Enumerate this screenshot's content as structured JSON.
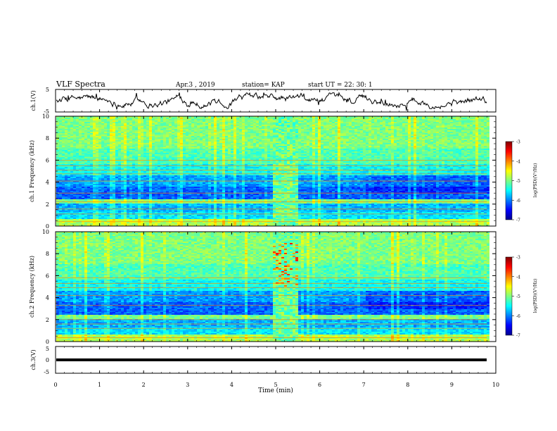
{
  "header": {
    "title": "VLF Spectra",
    "date": "Apr.3 , 2019",
    "station": "station= KAP",
    "start": "start UT = 22: 30: 1"
  },
  "chart_data": [
    {
      "type": "line",
      "name": "ch1-voltage",
      "ylabel": "ch.1(V)",
      "ylim": [
        -5,
        5
      ],
      "yticks": [
        "5",
        "-5"
      ],
      "xlim": [
        0,
        9.8
      ],
      "note": "noisy trace around 0 V"
    },
    {
      "type": "heatmap",
      "name": "ch1-spectrogram",
      "ylabel": "ch.1 Frequency (kHz)",
      "ylim": [
        0,
        10
      ],
      "yticks": [
        "10",
        "8",
        "6",
        "4",
        "2",
        "0"
      ],
      "xlim": [
        0,
        9.8
      ],
      "colorbar": {
        "label": "log(PSD)(V²/Hz)",
        "ticks": [
          "-3",
          "-4",
          "-5",
          "-6",
          "-7"
        ],
        "range": [
          -7,
          -3
        ]
      }
    },
    {
      "type": "heatmap",
      "name": "ch2-spectrogram",
      "ylabel": "ch.2 Frequency (kHz)",
      "ylim": [
        0,
        10
      ],
      "yticks": [
        "10",
        "8",
        "6",
        "4",
        "2",
        "0"
      ],
      "xlim": [
        0,
        9.8
      ],
      "colorbar": {
        "label": "log(PSD)(V²/Hz)",
        "ticks": [
          "-3",
          "-4",
          "-5",
          "-6",
          "-7"
        ],
        "range": [
          -7,
          -3
        ]
      }
    },
    {
      "type": "line",
      "name": "ch3-voltage",
      "ylabel": "ch.3(V)",
      "ylim": [
        -5,
        5
      ],
      "yticks": [
        "5",
        "0",
        "-5"
      ],
      "xlim": [
        0,
        9.8
      ],
      "values_constant": 0
    }
  ],
  "xaxis": {
    "label": "Time (min)",
    "ticks": [
      "0",
      "1",
      "2",
      "3",
      "4",
      "5",
      "6",
      "7",
      "8",
      "9",
      "10"
    ],
    "range": [
      0,
      10
    ]
  },
  "colors": {
    "axis": "#000000",
    "jet": [
      "#00008f",
      "#0000ff",
      "#0080ff",
      "#00ffff",
      "#80ff80",
      "#ffff00",
      "#ff8000",
      "#ff0000",
      "#800000"
    ]
  }
}
